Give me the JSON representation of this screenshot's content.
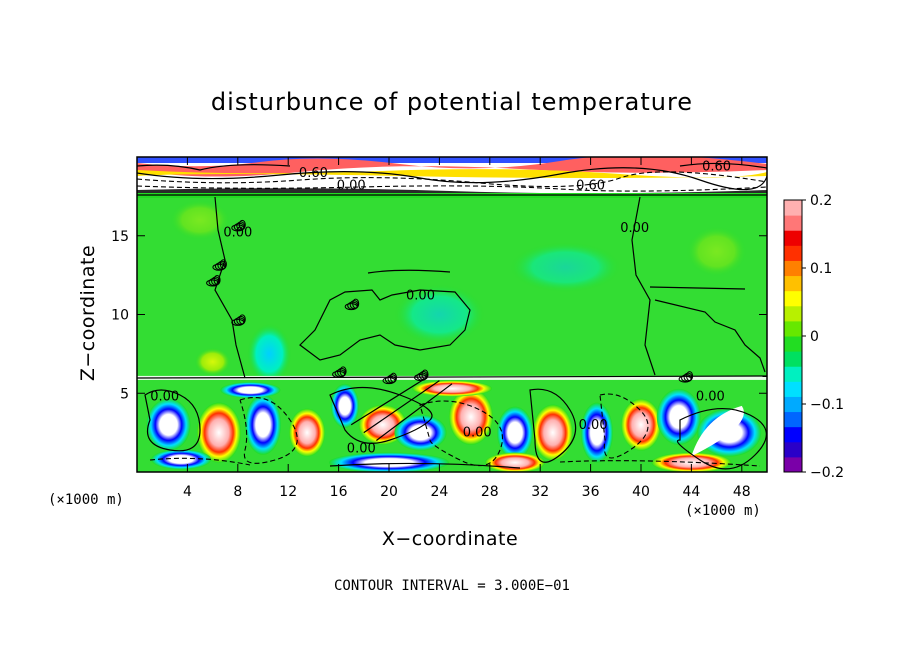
{
  "chart_data": {
    "type": "heatmap",
    "title": "disturbunce of potential temperature",
    "xlabel": "X−coordinate",
    "ylabel": "Z−coordinate",
    "x_unit_left": "(×1000 m)",
    "x_unit_right": "(×1000 m)",
    "xlim": [
      0,
      50
    ],
    "ylim": [
      0,
      20
    ],
    "xticks": [
      4,
      8,
      12,
      16,
      20,
      24,
      28,
      32,
      36,
      40,
      44,
      48
    ],
    "yticks": [
      5,
      10,
      15
    ],
    "colorbar": {
      "range": [
        -0.2,
        0.2
      ],
      "ticks": [
        0.2,
        0.1,
        0,
        -0.1,
        -0.2
      ],
      "tick_labels": [
        "0.2",
        "0.1",
        "0",
        "−0.1",
        "−0.2"
      ],
      "colors": [
        "#7a00a8",
        "#2a00c8",
        "#0000ff",
        "#0066ff",
        "#00aaff",
        "#00e0ff",
        "#00f0c0",
        "#00e060",
        "#22dd22",
        "#66e800",
        "#b8f000",
        "#ffff00",
        "#ffc000",
        "#ff8000",
        "#ff3000",
        "#ee0000",
        "#ff7777",
        "#ffb0b0"
      ]
    },
    "contour_labels": [
      {
        "text": "0.60",
        "x": 14,
        "y": 19.0
      },
      {
        "text": "0.00",
        "x": 17,
        "y": 18.2
      },
      {
        "text": "0.60",
        "x": 36,
        "y": 18.2
      },
      {
        "text": "0.60",
        "x": 46,
        "y": 19.4
      },
      {
        "text": "0.00",
        "x": 8,
        "y": 15.2
      },
      {
        "text": "0.00",
        "x": 39.5,
        "y": 15.5
      },
      {
        "text": "0.00",
        "x": 22.5,
        "y": 11.2
      },
      {
        "text": "0.00",
        "x": 2.2,
        "y": 4.8
      },
      {
        "text": "0.00",
        "x": 17.8,
        "y": 1.5
      },
      {
        "text": "0.00",
        "x": 27,
        "y": 2.5
      },
      {
        "text": "0.00",
        "x": 36.2,
        "y": 3.0
      },
      {
        "text": "0.00",
        "x": 45.5,
        "y": 4.8
      }
    ],
    "contour_interval_text": "CONTOUR INTERVAL = 3.000E−01"
  }
}
